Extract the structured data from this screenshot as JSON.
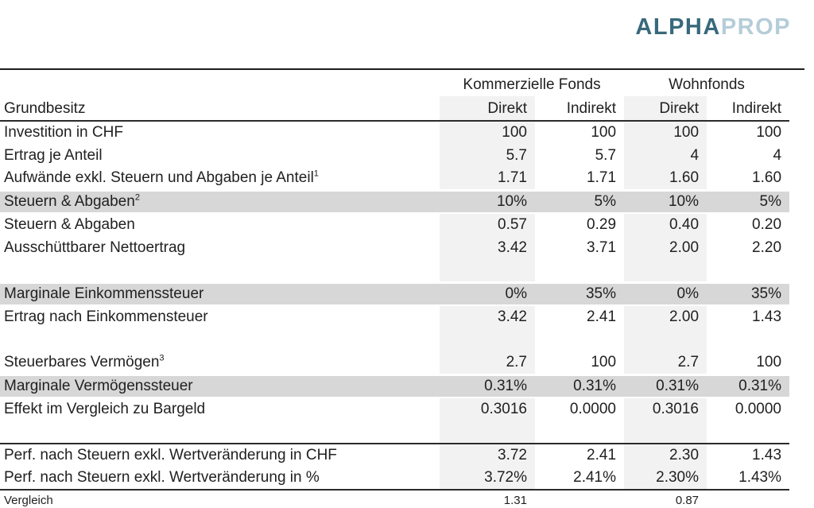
{
  "logo": {
    "text_primary": "ALPHA",
    "text_secondary": "PROP"
  },
  "colors": {
    "logo_primary": "#38697c",
    "logo_secondary": "#b5cdd8",
    "row_band": "#d7d7d7",
    "column_shade": "#f2f2f2",
    "text": "#212121",
    "rule_dark": "#2b2b2b",
    "rule_light": "#b5b5b5"
  },
  "table": {
    "corner_label": "Grundbesitz",
    "groups": [
      "Kommerzielle Fonds",
      "Wohnfonds"
    ],
    "sub_headers": [
      "Direkt",
      "Indirekt",
      "Direkt",
      "Indirekt"
    ],
    "rows": [
      {
        "label": "Investition in CHF",
        "sup": "",
        "values": [
          "100",
          "100",
          "100",
          "100"
        ],
        "style": "normal"
      },
      {
        "label": "Ertrag je Anteil",
        "sup": "",
        "values": [
          "5.7",
          "5.7",
          "4",
          "4"
        ],
        "style": "normal"
      },
      {
        "label": "Aufwände exkl. Steuern und Abgaben je Anteil",
        "sup": "1",
        "values": [
          "1.71",
          "1.71",
          "1.60",
          "1.60"
        ],
        "style": "normal"
      },
      {
        "label": "Steuern & Abgaben",
        "sup": "2",
        "values": [
          "10%",
          "5%",
          "10%",
          "5%"
        ],
        "style": "band"
      },
      {
        "label": "Steuern & Abgaben",
        "sup": "",
        "values": [
          "0.57",
          "0.29",
          "0.40",
          "0.20"
        ],
        "style": "normal"
      },
      {
        "label": "Ausschüttbarer Nettoertrag",
        "sup": "",
        "values": [
          "3.42",
          "3.71",
          "2.00",
          "2.20"
        ],
        "style": "normal"
      },
      {
        "label": "",
        "sup": "",
        "values": [
          "",
          "",
          "",
          ""
        ],
        "style": "spacer"
      },
      {
        "label": "Marginale Einkommenssteuer",
        "sup": "",
        "values": [
          "0%",
          "35%",
          "0%",
          "35%"
        ],
        "style": "band"
      },
      {
        "label": "Ertrag nach Einkommensteuer",
        "sup": "",
        "values": [
          "3.42",
          "2.41",
          "2.00",
          "1.43"
        ],
        "style": "normal"
      },
      {
        "label": "",
        "sup": "",
        "values": [
          "",
          "",
          "",
          ""
        ],
        "style": "spacer"
      },
      {
        "label": "Steuerbares Vermögen",
        "sup": "3",
        "values": [
          "2.7",
          "100",
          "2.7",
          "100"
        ],
        "style": "normal"
      },
      {
        "label": "Marginale Vermögenssteuer",
        "sup": "",
        "values": [
          "0.31%",
          "0.31%",
          "0.31%",
          "0.31%"
        ],
        "style": "band"
      },
      {
        "label": "Effekt im Vergleich zu Bargeld",
        "sup": "",
        "values": [
          "0.3016",
          "0.0000",
          "0.3016",
          "0.0000"
        ],
        "style": "normal"
      },
      {
        "label": "",
        "sup": "",
        "values": [
          "",
          "",
          "",
          ""
        ],
        "style": "spacer"
      },
      {
        "label": "Perf. nach Steuern exkl. Wertveränderung in CHF",
        "sup": "",
        "values": [
          "3.72",
          "2.41",
          "2.30",
          "1.43"
        ],
        "style": "perf-first"
      },
      {
        "label": "Perf. nach Steuern exkl. Wertveränderung in %",
        "sup": "",
        "values": [
          "3.72%",
          "2.41%",
          "2.30%",
          "1.43%"
        ],
        "style": "perf-last"
      },
      {
        "label": "Vergleich",
        "sup": "",
        "values": [
          "1.31",
          "",
          "0.87",
          ""
        ],
        "style": "footer"
      }
    ]
  }
}
